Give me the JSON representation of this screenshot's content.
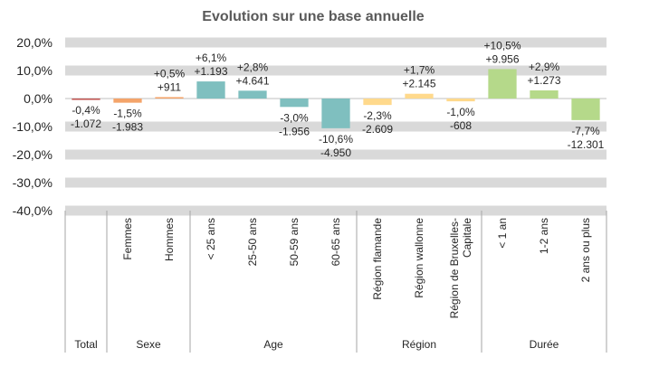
{
  "chart_data": {
    "type": "bar",
    "title": "Evolution sur une base annuelle",
    "ylim": [
      -40,
      20
    ],
    "yticks": [
      {
        "value": -40,
        "label": "-40,0%"
      },
      {
        "value": -30,
        "label": "-30,0%"
      },
      {
        "value": -20,
        "label": "-20,0%"
      },
      {
        "value": -10,
        "label": "-10,0%"
      },
      {
        "value": 0,
        "label": "0,0%"
      },
      {
        "value": 10,
        "label": "10,0%"
      },
      {
        "value": 20,
        "label": "20,0%"
      }
    ],
    "grid": true,
    "groups": [
      {
        "label": "Total",
        "color": "#c0504d",
        "categories": [
          null
        ],
        "values": [
          -0.4
        ],
        "value_labels": [
          "-0,4%"
        ],
        "count_labels": [
          "-1.072"
        ]
      },
      {
        "label": "Sexe",
        "color": "#f4a46a",
        "categories": [
          "Femmes",
          "Hommes"
        ],
        "values": [
          -1.5,
          0.5
        ],
        "value_labels": [
          "-1,5%",
          "+0,5%"
        ],
        "count_labels": [
          "-1.983",
          "+911"
        ]
      },
      {
        "label": "Age",
        "color": "#7fbfbf",
        "categories": [
          "< 25 ans",
          "25-50 ans",
          "50-59 ans",
          "60-65 ans"
        ],
        "values": [
          6.1,
          2.8,
          -3.0,
          -10.6
        ],
        "value_labels": [
          "+6,1%",
          "+2,8%",
          "-3,0%",
          "-10,6%"
        ],
        "count_labels": [
          "+1.193",
          "+4.641",
          "-1.956",
          "-4.950"
        ]
      },
      {
        "label": "Région",
        "color": "#ffd98c",
        "categories": [
          "Région flamande",
          "Région wallonne",
          "Région de Bruxelles-Capitale"
        ],
        "values": [
          -2.3,
          1.7,
          -1.0
        ],
        "value_labels": [
          "-2,3%",
          "+1,7%",
          "-1,0%"
        ],
        "count_labels": [
          "-2.609",
          "+2.145",
          "-608"
        ]
      },
      {
        "label": "Durée",
        "color": "#b5d98a",
        "categories": [
          "< 1 an",
          "1-2 ans",
          "2 ans ou plus"
        ],
        "values": [
          10.5,
          2.9,
          -7.7
        ],
        "value_labels": [
          "+10,5%",
          "+2,9%",
          "-7,7%"
        ],
        "count_labels": [
          "+9.956",
          "+1.273",
          "-12.301"
        ]
      }
    ]
  }
}
